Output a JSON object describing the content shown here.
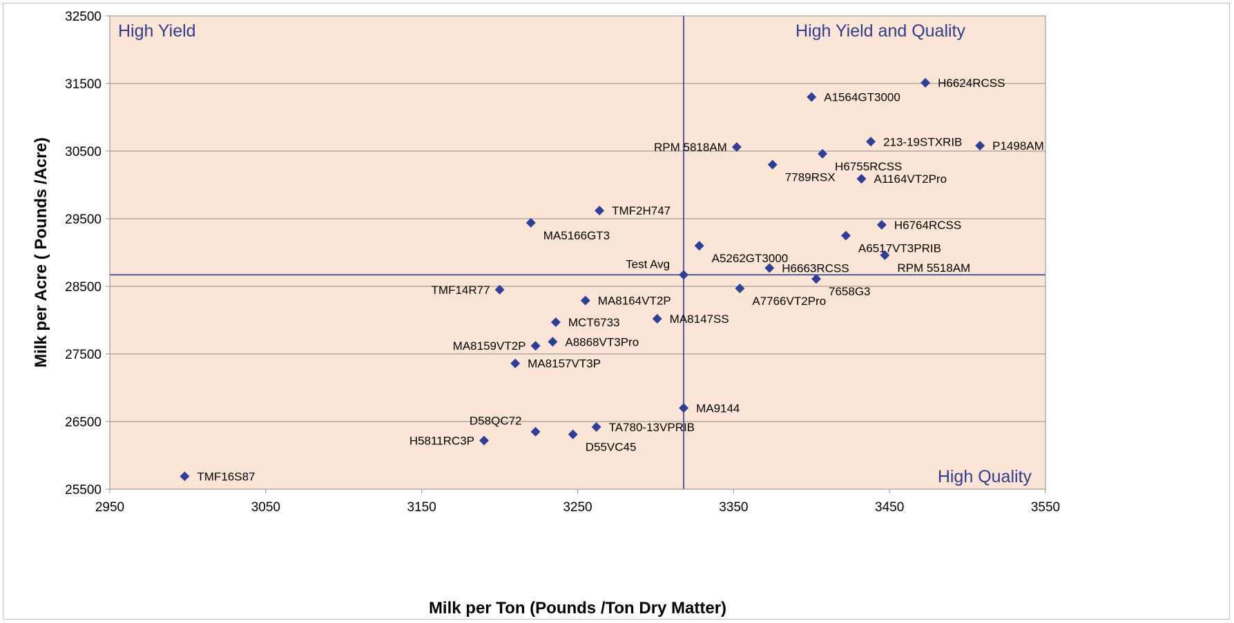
{
  "chart_data": {
    "type": "scatter",
    "xlabel": "Milk per Ton (Pounds /Ton Dry Matter)",
    "ylabel": "Milk per Acre ( Pounds /Acre)",
    "xlim": [
      2950,
      3550
    ],
    "ylim": [
      25500,
      32500
    ],
    "xticks": [
      2950,
      3050,
      3150,
      3250,
      3350,
      3450,
      3550
    ],
    "yticks": [
      25500,
      26500,
      27500,
      28500,
      29500,
      30500,
      31500,
      32500
    ],
    "grid": "horizontal",
    "reference_lines": {
      "x": 3318,
      "y": 28670
    },
    "quadrant_labels": {
      "top_left": "High Yield",
      "top_right": "High Yield and Quality",
      "bottom_right": "High Quality"
    },
    "colors": {
      "marker": "#2e3f96",
      "plot_background": "#fbe5d6",
      "reference_line": "#1f2f8a"
    },
    "points": [
      {
        "label": "H6624RCSS",
        "x": 3473,
        "y": 31510,
        "anchor": "right"
      },
      {
        "label": "A1564GT3000",
        "x": 3400,
        "y": 31300,
        "anchor": "right"
      },
      {
        "label": "213-19STXRIB",
        "x": 3438,
        "y": 30640,
        "anchor": "right"
      },
      {
        "label": "P1498AM",
        "x": 3508,
        "y": 30580,
        "anchor": "right"
      },
      {
        "label": "RPM 5818AM",
        "x": 3352,
        "y": 30560,
        "anchor": "left"
      },
      {
        "label": "H6755RCSS",
        "x": 3407,
        "y": 30460,
        "anchor": "right-below"
      },
      {
        "label": "7789RSX",
        "x": 3375,
        "y": 30300,
        "anchor": "right-below"
      },
      {
        "label": "A1164VT2Pro",
        "x": 3432,
        "y": 30090,
        "anchor": "right"
      },
      {
        "label": "TMF2H747",
        "x": 3264,
        "y": 29620,
        "anchor": "right"
      },
      {
        "label": "MA5166GT3",
        "x": 3220,
        "y": 29440,
        "anchor": "right-below"
      },
      {
        "label": "H6764RCSS",
        "x": 3445,
        "y": 29410,
        "anchor": "right"
      },
      {
        "label": "A6517VT3PRIB",
        "x": 3422,
        "y": 29250,
        "anchor": "right-below"
      },
      {
        "label": "A5262GT3000",
        "x": 3328,
        "y": 29100,
        "anchor": "right-below"
      },
      {
        "label": "RPM 5518AM",
        "x": 3447,
        "y": 28960,
        "anchor": "right-below"
      },
      {
        "label": "H6663RCSS",
        "x": 3373,
        "y": 28770,
        "anchor": "right"
      },
      {
        "label": "Test Avg",
        "x": 3318,
        "y": 28670,
        "anchor": "left-above"
      },
      {
        "label": "7658G3",
        "x": 3403,
        "y": 28610,
        "anchor": "right-below"
      },
      {
        "label": "TMF14R77",
        "x": 3200,
        "y": 28450,
        "anchor": "left"
      },
      {
        "label": "A7766VT2Pro",
        "x": 3354,
        "y": 28470,
        "anchor": "right-below"
      },
      {
        "label": "MA8164VT2P",
        "x": 3255,
        "y": 28290,
        "anchor": "right"
      },
      {
        "label": "MA8147SS",
        "x": 3301,
        "y": 28020,
        "anchor": "right"
      },
      {
        "label": "MCT6733",
        "x": 3236,
        "y": 27970,
        "anchor": "right"
      },
      {
        "label": "A8868VT3Pro",
        "x": 3234,
        "y": 27680,
        "anchor": "right"
      },
      {
        "label": "MA8159VT2P",
        "x": 3223,
        "y": 27620,
        "anchor": "left"
      },
      {
        "label": "MA8157VT3P",
        "x": 3210,
        "y": 27360,
        "anchor": "right"
      },
      {
        "label": "MA9144",
        "x": 3318,
        "y": 26700,
        "anchor": "right"
      },
      {
        "label": "TA780-13VPRIB",
        "x": 3262,
        "y": 26420,
        "anchor": "right"
      },
      {
        "label": "D58QC72",
        "x": 3223,
        "y": 26350,
        "anchor": "left-above"
      },
      {
        "label": "D55VC45",
        "x": 3247,
        "y": 26310,
        "anchor": "right-below"
      },
      {
        "label": "H5811RC3P",
        "x": 3190,
        "y": 26220,
        "anchor": "left"
      },
      {
        "label": "TMF16S87",
        "x": 2998,
        "y": 25690,
        "anchor": "right"
      }
    ]
  }
}
